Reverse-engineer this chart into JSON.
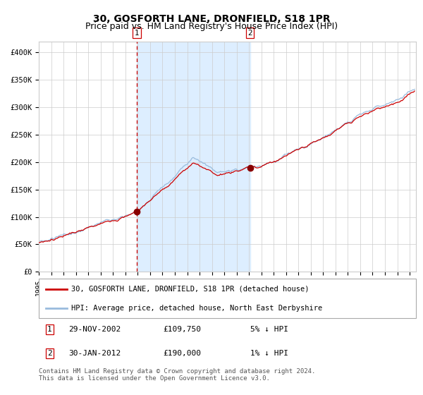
{
  "title": "30, GOSFORTH LANE, DRONFIELD, S18 1PR",
  "subtitle": "Price paid vs. HM Land Registry's House Price Index (HPI)",
  "xlim_start": 1995.0,
  "xlim_end": 2025.5,
  "ylim": [
    0,
    420000
  ],
  "yticks": [
    0,
    50000,
    100000,
    150000,
    200000,
    250000,
    300000,
    350000,
    400000
  ],
  "ytick_labels": [
    "£0",
    "£50K",
    "£100K",
    "£150K",
    "£200K",
    "£250K",
    "£300K",
    "£350K",
    "£400K"
  ],
  "sale1_date": 2002.91,
  "sale1_price": 109750,
  "sale1_label": "1",
  "sale2_date": 2012.08,
  "sale2_price": 190000,
  "sale2_label": "2",
  "shading_start": 2002.91,
  "shading_end": 2012.08,
  "hpi_line_color": "#99bbdd",
  "price_line_color": "#cc0000",
  "sale_dot_color": "#880000",
  "vline_color": "#cc0000",
  "shading_color": "#ddeeff",
  "grid_color": "#cccccc",
  "legend_entries": [
    "30, GOSFORTH LANE, DRONFIELD, S18 1PR (detached house)",
    "HPI: Average price, detached house, North East Derbyshire"
  ],
  "legend_line_colors": [
    "#cc0000",
    "#99bbdd"
  ],
  "table_rows": [
    [
      "1",
      "29-NOV-2002",
      "£109,750",
      "5% ↓ HPI"
    ],
    [
      "2",
      "30-JAN-2012",
      "£190,000",
      "1% ↓ HPI"
    ]
  ],
  "footnote": "Contains HM Land Registry data © Crown copyright and database right 2024.\nThis data is licensed under the Open Government Licence v3.0.",
  "title_fontsize": 10,
  "subtitle_fontsize": 9,
  "axis_tick_fontsize": 7.5
}
